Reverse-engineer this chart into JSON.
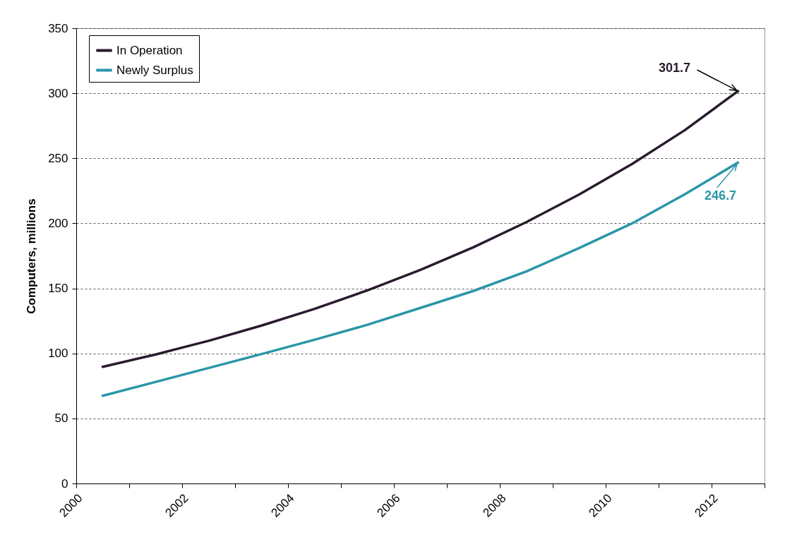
{
  "chart_data": {
    "type": "line",
    "ylabel": "Computers, millions",
    "x": [
      2000.5,
      2001.5,
      2002.5,
      2003.5,
      2004.5,
      2005.5,
      2006.5,
      2007.5,
      2008.5,
      2009.5,
      2010.5,
      2011.5,
      2012.5
    ],
    "series": [
      {
        "name": "In Operation",
        "color": "#2a1a2e",
        "values": [
          89.7,
          99.2,
          109.7,
          121.4,
          134.2,
          148.5,
          164.2,
          181.6,
          200.9,
          222.2,
          245.7,
          271.8,
          301.7
        ]
      },
      {
        "name": "Newly Surplus",
        "color": "#2a96a8",
        "values": [
          67.4,
          78.1,
          88.8,
          99.5,
          110.5,
          122,
          135,
          148,
          163,
          181,
          200,
          222.5,
          246.7
        ]
      }
    ],
    "xlim": [
      2000,
      2013
    ],
    "xticks": [
      2000,
      {
        "value": 2001,
        "label": null
      },
      2002,
      {
        "value": 2003,
        "label": null
      },
      2004,
      {
        "value": 2005,
        "label": null
      },
      2006,
      {
        "value": 2007,
        "label": null
      },
      2008,
      {
        "value": 2009,
        "label": null
      },
      2010,
      {
        "value": 2011,
        "label": null
      },
      2012,
      {
        "value": 2013,
        "label": null
      }
    ],
    "ylim": [
      0,
      350
    ],
    "yticks": [
      0,
      50,
      100,
      150,
      200,
      250,
      300,
      350
    ],
    "grid": "y",
    "legend": "top left",
    "marker": "none",
    "line_style": "solid",
    "annotations": [
      {
        "text": "301.7",
        "x": 2012.5,
        "y": 301.7
      },
      {
        "text": "246.7",
        "x": 2012.5,
        "y": 246.7
      }
    ]
  }
}
